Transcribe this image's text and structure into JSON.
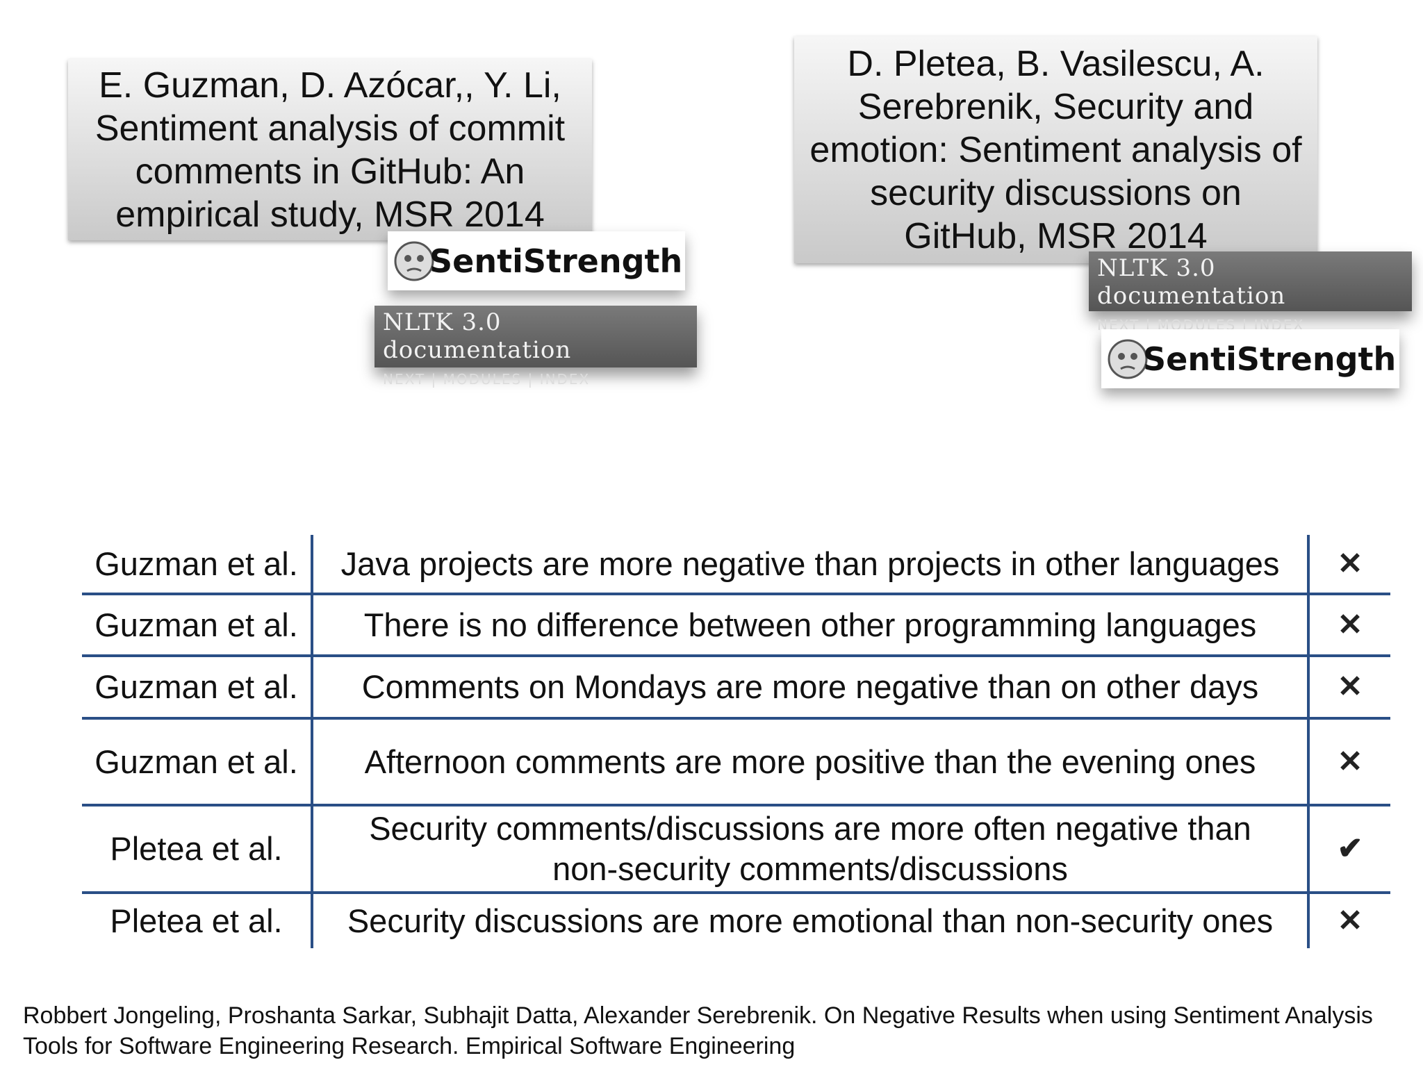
{
  "papers": [
    {
      "text": "E. Guzman, D. Azócar,, Y. Li, Sentiment analysis of commit comments in GitHub: An empirical study, MSR 2014"
    },
    {
      "text": "D. Pletea, B. Vasilescu, A. Serebrenik, Security and emotion: Sentiment analysis of security discussions on GitHub, MSR 2014"
    }
  ],
  "logos": {
    "sentistrength": "SentiStrength",
    "nltk_title": "NLTK 3.0 documentation",
    "nltk_links": [
      "NEXT",
      "MODULES",
      "INDEX"
    ],
    "separator": "|"
  },
  "table": {
    "rows": [
      [
        "Guzman et al.",
        "Java projects are more negative than projects in other languages",
        "✕"
      ],
      [
        "Guzman et al.",
        "There is no difference between other programming languages",
        "✕"
      ],
      [
        "Guzman et al.",
        "Comments on Mondays are more negative than on other days",
        "✕"
      ],
      [
        "Guzman et al.",
        "Afternoon comments are more positive than the evening ones",
        "✕"
      ],
      [
        "Pletea et al.",
        "Security comments/discussions are more often negative than non-security comments/discussions",
        "✔"
      ],
      [
        "Pletea et al.",
        "Security discussions are more emotional than non-security ones",
        "✕"
      ]
    ]
  },
  "citation": "Robbert Jongeling, Proshanta Sarkar, Subhajit Datta, Alexander Serebrenik. On Negative Results when using Sentiment Analysis Tools for Software Engineering Research. Empirical Software Engineering"
}
